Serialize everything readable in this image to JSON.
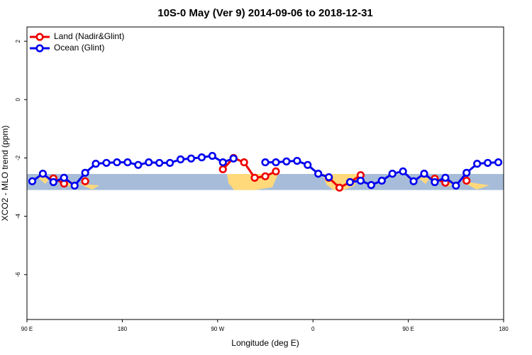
{
  "chart_data": {
    "type": "line",
    "title": "10S-0 May (Ver 9)   2014-09-06 to 2018-12-31",
    "x_label": "Longitude (deg E)",
    "y_label": "XCO2 - MLO trend (ppm)",
    "x": [
      95,
      105,
      115,
      125,
      135,
      145,
      155,
      165,
      175,
      185,
      195,
      205,
      215,
      225,
      235,
      245,
      255,
      265,
      275,
      285,
      295,
      305,
      315,
      325,
      335,
      345,
      355,
      365,
      375,
      385,
      395,
      405,
      415,
      425,
      435,
      445,
      455,
      465,
      475,
      485,
      495,
      505,
      515,
      525,
      535
    ],
    "series": [
      {
        "name": "Land (Nadir&Glint)",
        "color": "#ee0000",
        "values": [
          null,
          null,
          -2.7,
          -2.88,
          null,
          -2.8,
          null,
          null,
          null,
          null,
          null,
          null,
          null,
          null,
          null,
          null,
          null,
          null,
          -2.39,
          -2.0,
          -2.15,
          -2.68,
          -2.63,
          -2.46,
          null,
          null,
          null,
          null,
          -2.68,
          -3.02,
          -2.83,
          -2.59,
          null,
          null,
          null,
          null,
          null,
          null,
          -2.71,
          -2.85,
          null,
          -2.78,
          null,
          null,
          null
        ]
      },
      {
        "name": "Ocean (Glint)",
        "color": "#0000ee",
        "values": [
          -2.8,
          -2.54,
          -2.83,
          -2.68,
          -2.95,
          -2.51,
          -2.2,
          -2.17,
          -2.15,
          -2.15,
          -2.24,
          -2.15,
          -2.17,
          -2.17,
          -2.05,
          -2.02,
          -1.98,
          -1.93,
          -2.15,
          -2.02,
          null,
          null,
          -2.15,
          -2.15,
          -2.12,
          -2.1,
          -2.24,
          -2.54,
          -2.66,
          null,
          -2.83,
          -2.78,
          -2.93,
          -2.78,
          -2.54,
          -2.46,
          -2.8,
          -2.54,
          -2.83,
          -2.68,
          -2.95,
          -2.51,
          -2.2,
          -2.17,
          -2.15
        ]
      }
    ],
    "xlim": [
      90,
      540
    ],
    "xticks": [
      {
        "value": 90,
        "label": "90 E"
      },
      180,
      {
        "value": 270,
        "label": "90 W"
      },
      {
        "value": 360,
        "label": "0"
      },
      {
        "value": 450,
        "label": "90 E"
      },
      {
        "value": 540,
        "label": "180"
      }
    ],
    "ylim": [
      -7.54,
      2.49
    ],
    "yticks": [
      -6,
      -4,
      -2,
      0,
      2
    ],
    "map_strip": {
      "ylim": [
        -3.1,
        -2.55
      ],
      "color": "#a6bcd9"
    },
    "legend": "top-left"
  }
}
